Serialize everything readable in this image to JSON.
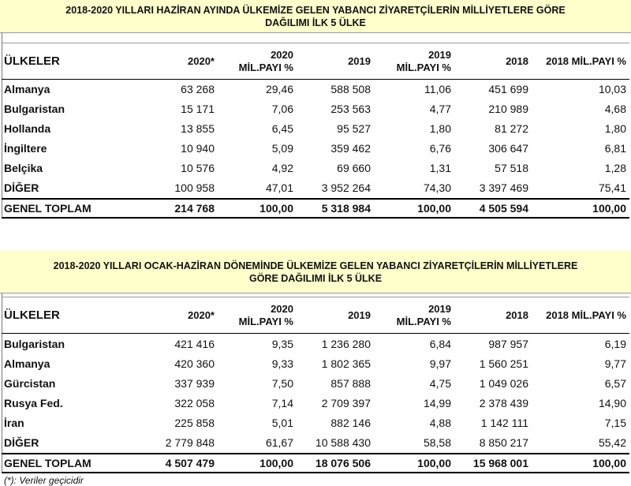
{
  "tables": [
    {
      "title": "2018-2020 YILLARI HAZİRAN AYINDA ÜLKEMİZE GELEN YABANCI ZİYARETÇİLERİN MİLLİYETLERE GÖRE DAĞILIMI İLK 5 ÜLKE",
      "headers": [
        [
          "ÜLKELER"
        ],
        [
          "2020*"
        ],
        [
          "2020",
          "MİL.PAYI %"
        ],
        [
          "2019"
        ],
        [
          "2019",
          "MİL.PAYI %"
        ],
        [
          "2018"
        ],
        [
          "2018 MİL.PAYI %"
        ]
      ],
      "rows": [
        [
          "Almanya",
          "63 268",
          "29,46",
          "588 508",
          "11,06",
          "451 699",
          "10,03"
        ],
        [
          "Bulgaristan",
          "15 171",
          "7,06",
          "253 563",
          "4,77",
          "210 989",
          "4,68"
        ],
        [
          "Hollanda",
          "13 855",
          "6,45",
          "95 527",
          "1,80",
          "81 272",
          "1,80"
        ],
        [
          "İngiltere",
          "10 940",
          "5,09",
          "359 462",
          "6,76",
          "306 647",
          "6,81"
        ],
        [
          "Belçika",
          "10 576",
          "4,92",
          "69 660",
          "1,31",
          "57 518",
          "1,28"
        ],
        [
          "DİĞER",
          "100 958",
          "47,01",
          "3 952 264",
          "74,30",
          "3 397 469",
          "75,41"
        ]
      ],
      "total": [
        "GENEL TOPLAM",
        "214 768",
        "100,00",
        "5 318 984",
        "100,00",
        "4 505 594",
        "100,00"
      ]
    },
    {
      "title": "2018-2020 YILLARI OCAK-HAZİRAN DÖNEMİNDE ÜLKEMİZE GELEN YABANCI ZİYARETÇİLERİN MİLLİYETLERE GÖRE DAĞILIMI İLK 5 ÜLKE",
      "headers": [
        [
          "ÜLKELER"
        ],
        [
          "2020*"
        ],
        [
          "2020",
          "MİL.PAYI %"
        ],
        [
          "2019"
        ],
        [
          "2019",
          "MİL.PAYI %"
        ],
        [
          "2018"
        ],
        [
          "2018 MİL.PAYI %"
        ]
      ],
      "rows": [
        [
          "Bulgaristan",
          "421 416",
          "9,35",
          "1 236 280",
          "6,84",
          "987 957",
          "6,19"
        ],
        [
          "Almanya",
          "420 360",
          "9,33",
          "1 802 365",
          "9,97",
          "1 560 251",
          "9,77"
        ],
        [
          "Gürcistan",
          "337 939",
          "7,50",
          "857 888",
          "4,75",
          "1 049 026",
          "6,57"
        ],
        [
          "Rusya Fed.",
          "322 058",
          "7,14",
          "2 709 397",
          "14,99",
          "2 378 439",
          "14,90"
        ],
        [
          "İran",
          "225 858",
          "5,01",
          "882 146",
          "4,88",
          "1 142 111",
          "7,15"
        ],
        [
          "DİĞER",
          "2 779 848",
          "61,67",
          "10 588 430",
          "58,58",
          "8 850 217",
          "55,42"
        ]
      ],
      "total": [
        "GENEL TOPLAM",
        "4 507 479",
        "100,00",
        "18 076 506",
        "100,00",
        "15 968 001",
        "100,00"
      ]
    }
  ],
  "footnote": "(*): Veriler geçicidir"
}
